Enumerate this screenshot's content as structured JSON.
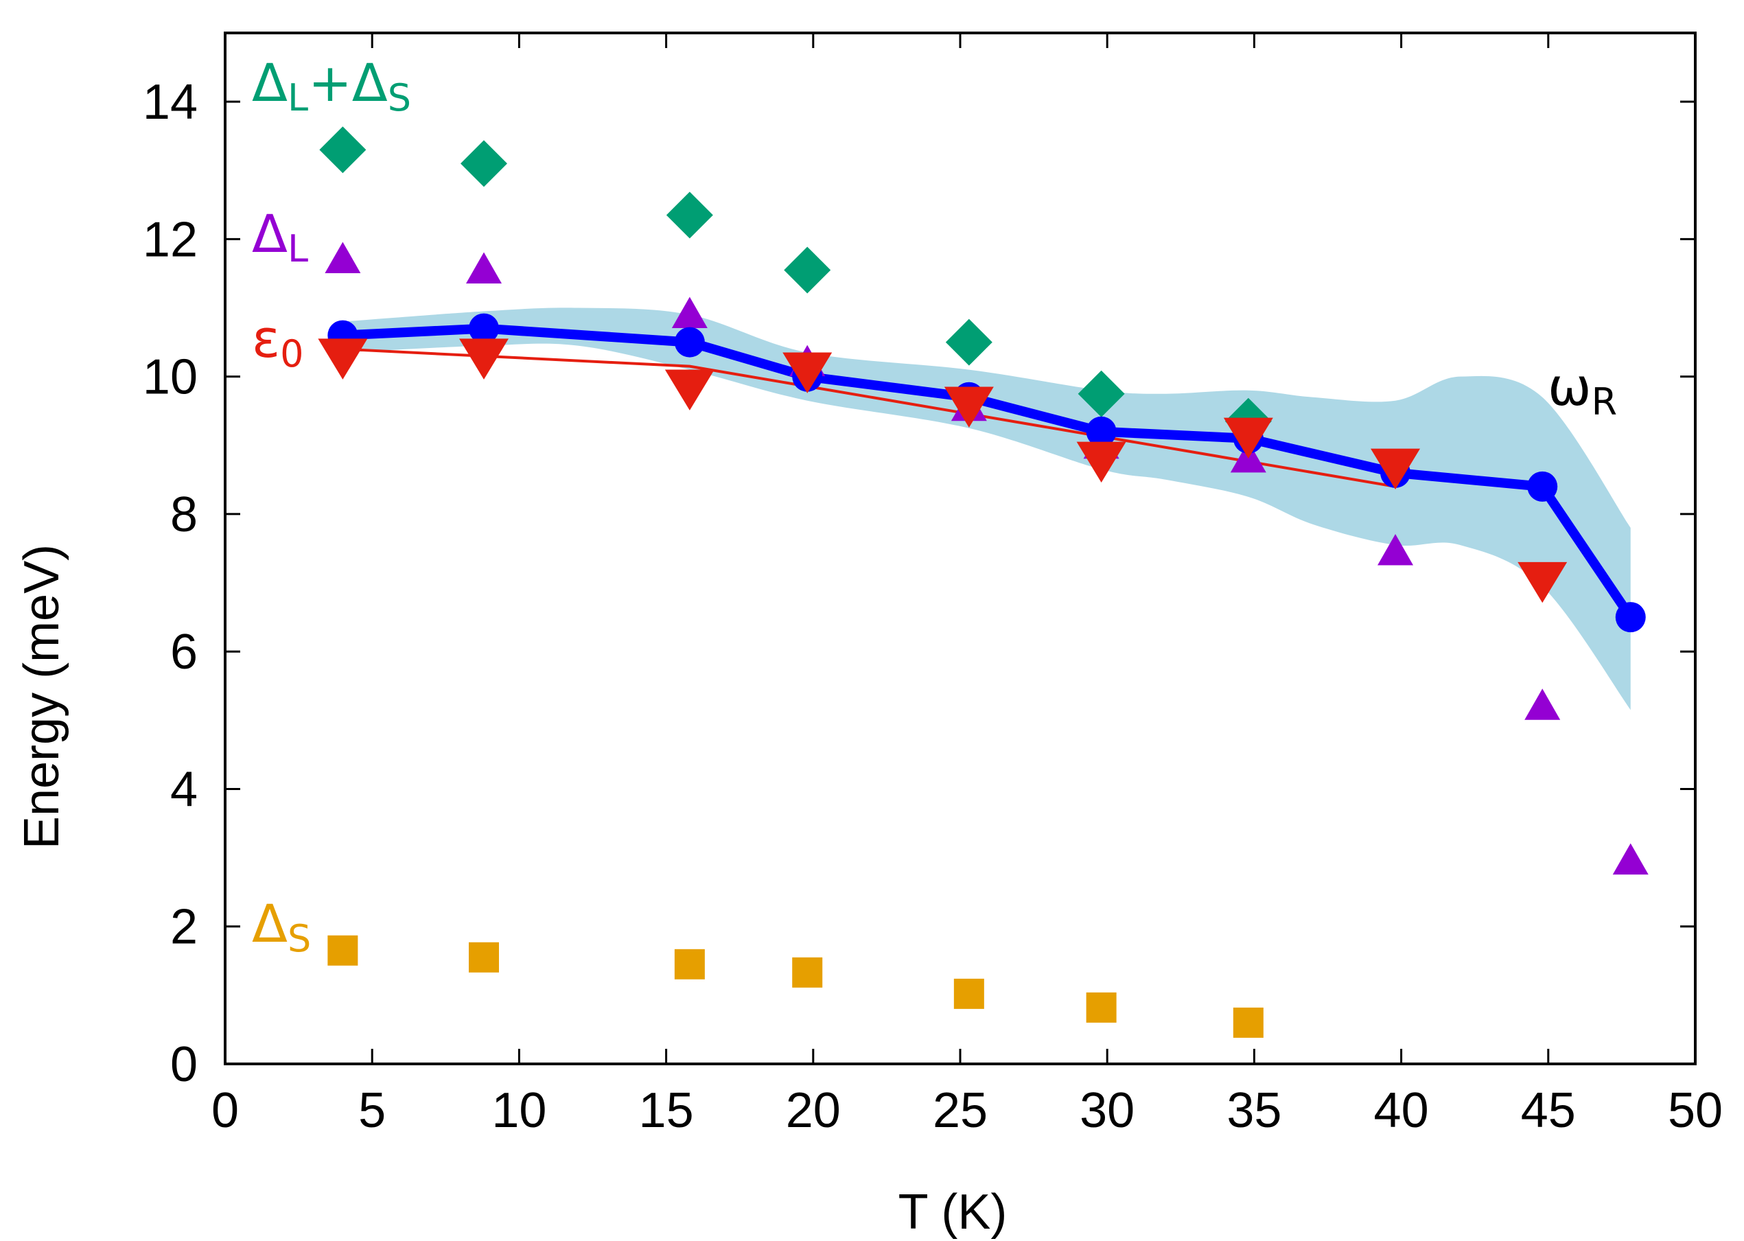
{
  "chart_data": {
    "type": "scatter",
    "title": "",
    "xlabel": "T (K)",
    "ylabel": "Energy (meV)",
    "xlim": [
      0,
      50
    ],
    "ylim": [
      0,
      15
    ],
    "x_ticks": [
      "0",
      "5",
      "10",
      "15",
      "20",
      "25",
      "30",
      "35",
      "40",
      "45",
      "50"
    ],
    "y_ticks": [
      "0",
      "2",
      "4",
      "6",
      "8",
      "10",
      "12",
      "14"
    ],
    "grid": false,
    "series": [
      {
        "name": "ΔL+ΔS",
        "label_main": "Δ",
        "label_sub": "L",
        "label_mid": "+Δ",
        "label_sub2": "S",
        "marker": "diamond",
        "color": "#009e73",
        "x": [
          4,
          8.8,
          15.8,
          19.8,
          25.3,
          29.8,
          34.8
        ],
        "y": [
          13.3,
          13.1,
          12.35,
          11.55,
          10.5,
          9.75,
          9.35
        ]
      },
      {
        "name": "ΔL",
        "label_main": "Δ",
        "label_sub": "L",
        "marker": "triangle-up",
        "color": "#9400d3",
        "x": [
          4,
          8.8,
          15.8,
          19.8,
          25.3,
          29.8,
          34.8,
          39.8,
          44.8,
          47.8
        ],
        "y": [
          11.7,
          11.55,
          10.9,
          10.2,
          9.55,
          9.0,
          8.8,
          7.45,
          5.2,
          2.95
        ]
      },
      {
        "name": "ε0",
        "label_main": "ε",
        "label_sub": "0",
        "marker": "triangle-down",
        "color": "#e51e10",
        "x": [
          4,
          8.8,
          15.8,
          19.8,
          25.3,
          29.8,
          34.8,
          39.8,
          44.8
        ],
        "y": [
          10.3,
          10.3,
          9.85,
          10.1,
          9.6,
          8.8,
          9.15,
          8.7,
          7.05
        ]
      },
      {
        "name": "ε0 fit",
        "marker": "none",
        "color": "#e51e10",
        "x": [
          4,
          15.8,
          39.8
        ],
        "y": [
          10.4,
          10.15,
          8.4
        ]
      },
      {
        "name": "ωR",
        "label_main": "ω",
        "label_sub": "R",
        "marker": "circle",
        "color": "#0000ff",
        "x": [
          4,
          8.8,
          15.8,
          19.8,
          25.3,
          29.8,
          34.8,
          39.8,
          44.8,
          47.8
        ],
        "y": [
          10.6,
          10.7,
          10.5,
          10.0,
          9.7,
          9.2,
          9.1,
          8.6,
          8.4,
          6.5
        ]
      },
      {
        "name": "ΔS",
        "label_main": "Δ",
        "label_sub": "S",
        "marker": "square",
        "color": "#e69f00",
        "x": [
          4,
          8.8,
          15.8,
          19.8,
          25.3,
          29.8,
          34.8
        ],
        "y": [
          1.65,
          1.55,
          1.45,
          1.33,
          1.02,
          0.82,
          0.6
        ]
      }
    ],
    "band": {
      "name": "ωR uncertainty",
      "color": "#add8e6",
      "x": [
        4,
        8.8,
        12,
        15.8,
        19.8,
        25.3,
        29.8,
        32,
        34.8,
        37,
        39.8,
        42,
        44.8,
        47.8
      ],
      "upper": [
        10.8,
        10.95,
        11.0,
        10.9,
        10.35,
        10.1,
        9.8,
        9.75,
        9.8,
        9.7,
        9.65,
        10.0,
        9.7,
        7.8
      ],
      "lower": [
        10.35,
        10.45,
        10.45,
        10.1,
        9.65,
        9.25,
        8.65,
        8.5,
        8.25,
        7.85,
        7.55,
        7.55,
        6.95,
        5.15
      ]
    }
  }
}
